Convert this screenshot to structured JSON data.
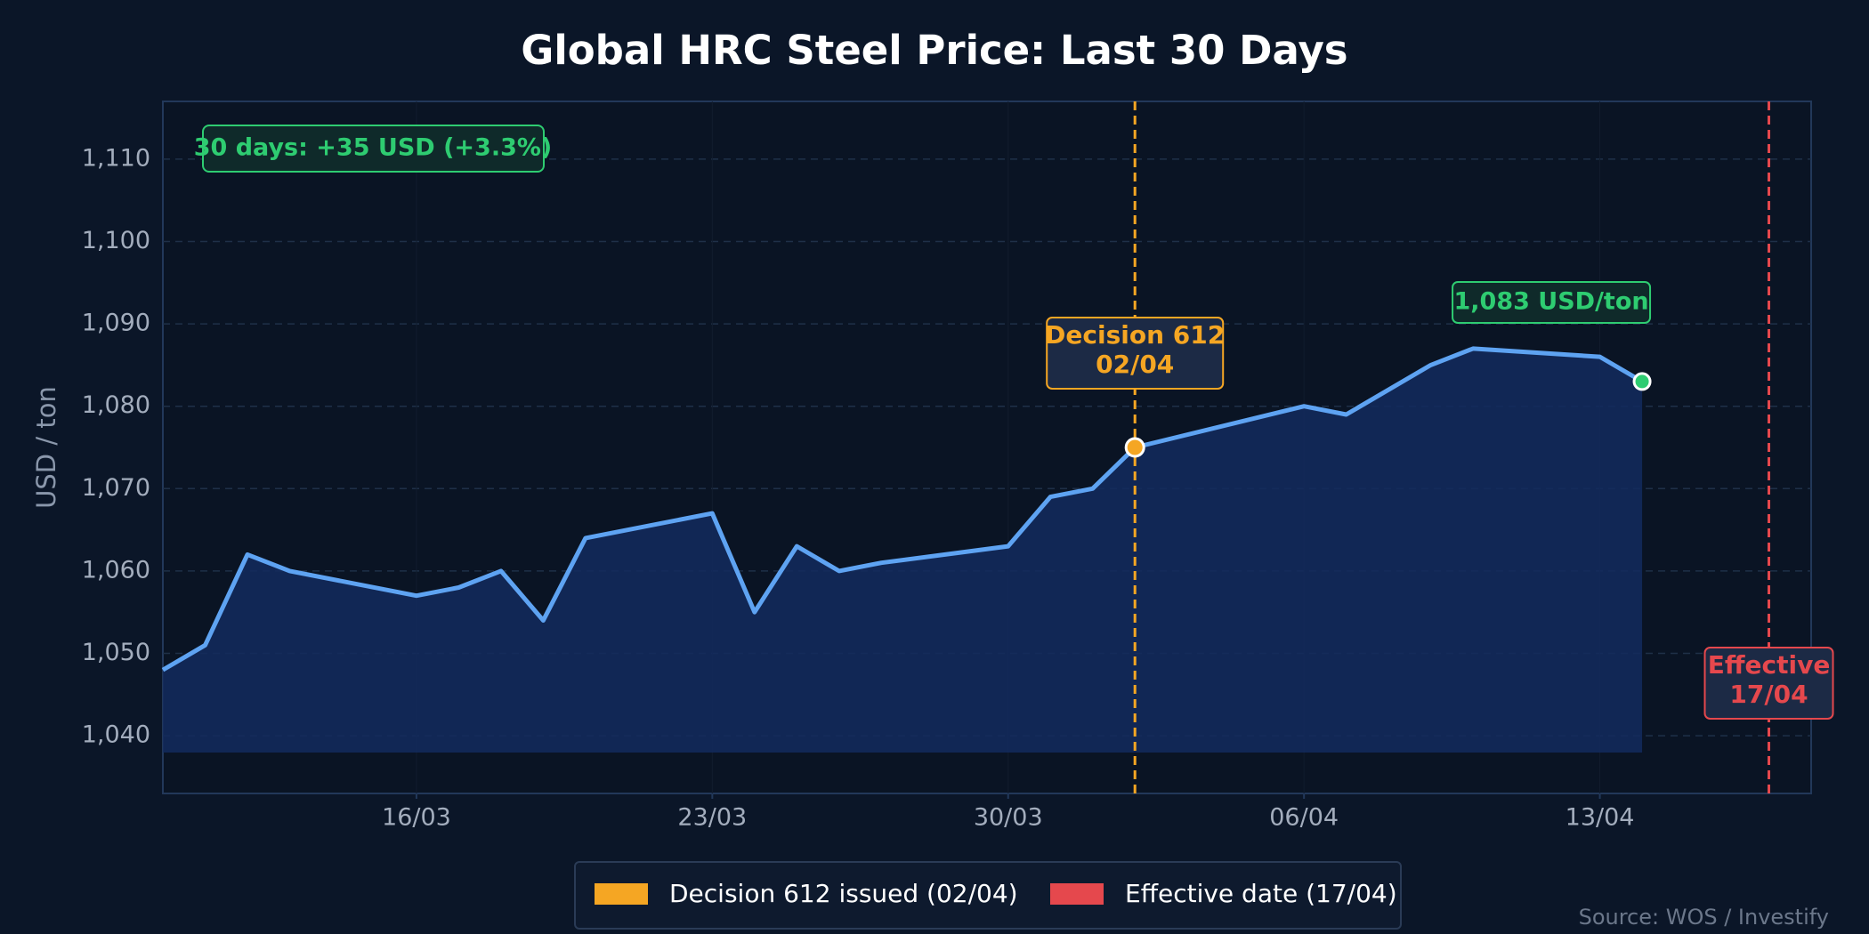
{
  "chart_data": {
    "type": "line",
    "title": "Global HRC Steel Price: Last 30 Days",
    "ylabel": "USD / ton",
    "x": [
      "10/03",
      "11/03",
      "12/03",
      "13/03",
      "16/03",
      "17/03",
      "18/03",
      "19/03",
      "20/03",
      "23/03",
      "24/03",
      "25/03",
      "26/03",
      "27/03",
      "30/03",
      "31/03",
      "01/04",
      "02/04",
      "06/04",
      "07/04",
      "09/04",
      "10/04",
      "13/04",
      "14/04"
    ],
    "values": [
      1048,
      1051,
      1062,
      1060,
      1057,
      1058,
      1060,
      1054,
      1064,
      1067,
      1055,
      1063,
      1060,
      1061,
      1063,
      1069,
      1070,
      1075,
      1080,
      1079,
      1085,
      1087,
      1086,
      1083
    ],
    "color": "#5ea3f2",
    "fill_color": "#132a5e",
    "last_point_color": "#2ecc71",
    "xlim": [
      "10/03",
      "18/04"
    ],
    "xticks": [
      "16/03",
      "23/03",
      "30/03",
      "06/04",
      "13/04"
    ],
    "ylim": [
      1033,
      1117
    ],
    "yticks": [
      {
        "value": 1040,
        "label": "1,040"
      },
      {
        "value": 1050,
        "label": "1,050"
      },
      {
        "value": 1060,
        "label": "1,060"
      },
      {
        "value": 1070,
        "label": "1,070"
      },
      {
        "value": 1080,
        "label": "1,080"
      },
      {
        "value": 1090,
        "label": "1,090"
      },
      {
        "value": 1100,
        "label": "1,100"
      },
      {
        "value": 1110,
        "label": "1,110"
      }
    ],
    "grid": true,
    "events": [
      {
        "date": "02/04",
        "color": "#f5a623",
        "label": [
          "Decision 612",
          "02/04"
        ],
        "legend": "Decision 612 issued (02/04)"
      },
      {
        "date": "17/04",
        "color": "#e5484d",
        "label": [
          "Effective",
          "17/04"
        ],
        "legend": "Effective date (17/04)"
      }
    ],
    "summary": "30 days: +35 USD  (+3.3%)",
    "last_label": "1,083 USD/ton",
    "source": "Source: WOS / Investify"
  }
}
